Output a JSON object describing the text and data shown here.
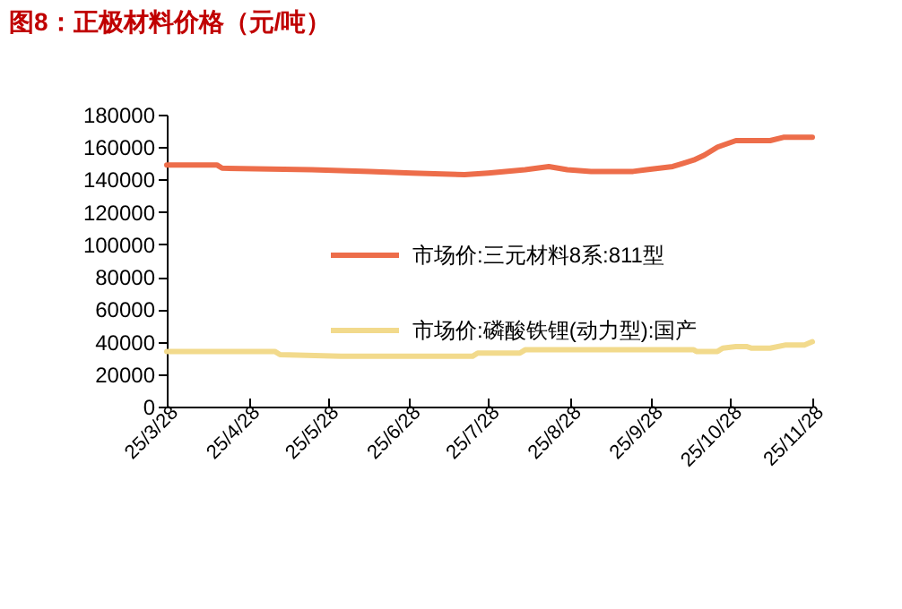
{
  "chart_data": {
    "type": "line",
    "title": "图8：正极材料价格（元/吨）",
    "xlim": [
      "--03-28",
      "--11-28"
    ],
    "xticks": [
      {
        "value": "--03-28",
        "label": "25/3/28"
      },
      {
        "value": "--04-28",
        "label": "25/4/28"
      },
      {
        "value": "--05-28",
        "label": "25/5/28"
      },
      {
        "value": "--06-28",
        "label": "25/6/28"
      },
      {
        "value": "--07-28",
        "label": "25/7/28"
      },
      {
        "value": "--08-28",
        "label": "25/8/28"
      },
      {
        "value": "--09-28",
        "label": "25/9/28"
      },
      {
        "value": "--10-28",
        "label": "25/10/28"
      },
      {
        "value": "--11-28",
        "label": "25/11/28"
      }
    ],
    "ylim": [
      0,
      180000
    ],
    "yticks": [
      0,
      20000,
      40000,
      60000,
      80000,
      100000,
      120000,
      140000,
      160000,
      180000
    ],
    "grid": false,
    "legend": "center",
    "line_style": "solid",
    "marker": "none",
    "series": [
      {
        "name": "市场价:三元材料8系:811型",
        "color": "#ed6d4a",
        "x": [
          "--03-28",
          "--04-16",
          "--04-18",
          "--05-22",
          "--06-13",
          "--06-29",
          "--07-19",
          "--07-28",
          "--08-11",
          "--08-20",
          "--08-27",
          "--09-05",
          "--09-21",
          "--09-26",
          "--10-06",
          "--10-10",
          "--10-14",
          "--10-18",
          "--10-23",
          "--10-30",
          "--11-12",
          "--11-17",
          "--11-28"
        ],
        "values": [
          149000,
          149000,
          147000,
          146000,
          145000,
          144000,
          143000,
          144000,
          146000,
          148000,
          146000,
          145000,
          145000,
          146000,
          148000,
          150000,
          152000,
          155000,
          160000,
          164000,
          164000,
          166000,
          166000
        ]
      },
      {
        "name": "市场价:磷酸铁锂(动力型):国产",
        "color": "#f2da8c",
        "x": [
          "--03-28",
          "--04-02",
          "--05-08",
          "--05-10",
          "--06-02",
          "--06-04",
          "--07-22",
          "--07-24",
          "--08-09",
          "--08-11",
          "--10-14",
          "--10-15",
          "--10-23",
          "--10-25",
          "--10-30",
          "--11-03",
          "--11-05",
          "--11-12",
          "--11-18",
          "--11-25",
          "--11-28"
        ],
        "values": [
          34000,
          34000,
          34000,
          32000,
          31000,
          31000,
          31000,
          33000,
          33000,
          35000,
          35000,
          34000,
          34000,
          36000,
          37000,
          37000,
          36000,
          36000,
          38000,
          38000,
          40000
        ]
      }
    ]
  }
}
